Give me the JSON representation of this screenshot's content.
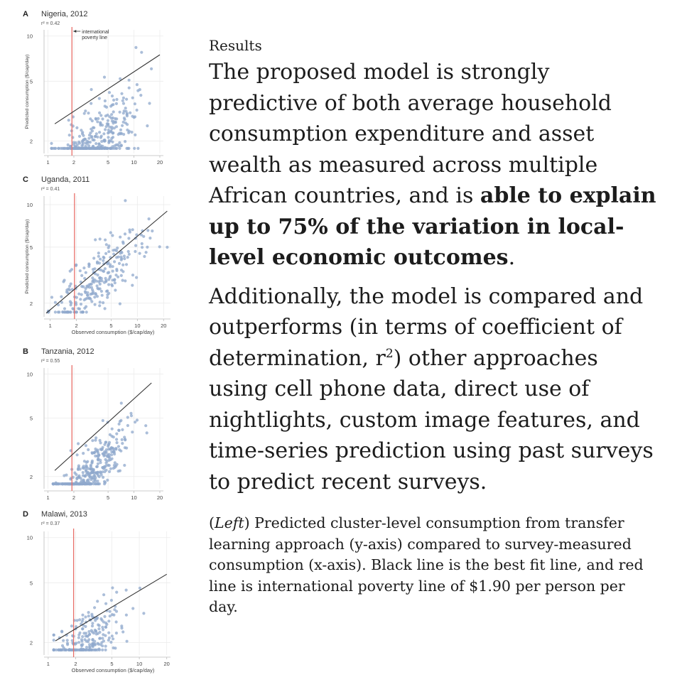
{
  "text": {
    "section_label": "Results",
    "para1_pre": "The proposed model is strongly predictive of both average household consumption expenditure and asset wealth as measured across multiple African countries, and is ",
    "para1_bold": "able to explain up to 75% of the variation in local-level economic outcomes",
    "para1_post": ".",
    "para2_pre": "Additionally, the model is compared and outperforms (in terms of coefficient of determination, r",
    "para2_sup": "2",
    "para2_post": ") other approaches using cell phone data, direct use of nightlights, custom image features, and time-series prediction using past surveys to predict recent surveys.",
    "caption_pre": "(",
    "caption_italic": "Left",
    "caption_post": ") Predicted cluster-level consumption from transfer learning approach (y-axis) compared to survey-measured consumption (x-axis). Black line is the best fit line, and red line is international poverty line of $1.90 per person per day."
  },
  "colors": {
    "points": "#8fa8cc",
    "fit_line": "#333333",
    "poverty_line": "#e8706a",
    "grid": "#ececec",
    "axis": "#bdbdbd"
  },
  "chart_data": [
    {
      "type": "scatter",
      "panel": "A",
      "title": "Nigeria, 2012",
      "r2": "r² = 0.42",
      "xlabel": "",
      "ylabel": "Predicted consumption ($/cap/day)",
      "x_scale": "log",
      "y_scale": "log",
      "xlim": [
        0.9,
        22
      ],
      "ylim": [
        1.65,
        11
      ],
      "xticks": [
        1,
        2,
        5,
        10,
        20
      ],
      "yticks": [
        2,
        5,
        10
      ],
      "poverty_line_x": 1.9,
      "annotation": [
        "international",
        "poverty line"
      ],
      "fit": {
        "x": [
          1.2,
          20
        ],
        "y": [
          2.6,
          7.5
        ]
      },
      "seed": 11,
      "n": 340,
      "cloud": {
        "x_mu": 1.32,
        "x_sd": 0.5,
        "x_min": 1.1,
        "x_max": 16,
        "slope": 0.42,
        "icept": 0.1,
        "noise": 0.3
      }
    },
    {
      "type": "scatter",
      "panel": "C",
      "title": "Uganda, 2011",
      "r2": "r² = 0.41",
      "xlabel": "Observed consumption ($/cap/day)",
      "ylabel": "Predicted consumption ($/cap/day)",
      "x_scale": "log",
      "y_scale": "log",
      "xlim": [
        0.85,
        24
      ],
      "ylim": [
        1.6,
        11.5
      ],
      "xticks": [
        1,
        2,
        5,
        10,
        20
      ],
      "yticks": [
        2,
        5,
        10
      ],
      "poverty_line_x": 1.9,
      "fit": {
        "x": [
          0.9,
          22
        ],
        "y": [
          1.7,
          9.0
        ]
      },
      "seed": 23,
      "n": 260,
      "cloud": {
        "x_mu": 1.2,
        "x_sd": 0.62,
        "x_min": 0.95,
        "x_max": 22,
        "slope": 0.55,
        "icept": 0.36,
        "noise": 0.28
      }
    },
    {
      "type": "scatter",
      "panel": "B",
      "title": "Tanzania, 2012",
      "r2": "r² = 0.55",
      "xlabel": "",
      "ylabel": "",
      "x_scale": "log",
      "y_scale": "log",
      "xlim": [
        0.9,
        22
      ],
      "ylim": [
        1.65,
        11
      ],
      "xticks": [
        1,
        2,
        5,
        10,
        20
      ],
      "yticks": [
        2,
        5,
        10
      ],
      "poverty_line_x": 1.9,
      "fit": {
        "x": [
          1.2,
          16
        ],
        "y": [
          2.2,
          8.7
        ]
      },
      "seed": 37,
      "n": 360,
      "cloud": {
        "x_mu": 1.2,
        "x_sd": 0.5,
        "x_min": 1.15,
        "x_max": 16,
        "slope": 0.6,
        "icept": 0.05,
        "noise": 0.22
      }
    },
    {
      "type": "scatter",
      "panel": "D",
      "title": "Malawi, 2013",
      "r2": "r² = 0.37",
      "xlabel": "Observed consumption ($/cap/day)",
      "ylabel": "",
      "x_scale": "log",
      "y_scale": "log",
      "xlim": [
        0.9,
        22
      ],
      "ylim": [
        1.65,
        11
      ],
      "xticks": [
        1,
        2,
        5,
        10,
        20
      ],
      "yticks": [
        2,
        5,
        10
      ],
      "poverty_line_x": 1.9,
      "fit": {
        "x": [
          1.2,
          20
        ],
        "y": [
          2.05,
          5.7
        ]
      },
      "seed": 53,
      "n": 230,
      "cloud": {
        "x_mu": 0.95,
        "x_sd": 0.45,
        "x_min": 1.15,
        "x_max": 20,
        "slope": 0.35,
        "icept": 0.38,
        "noise": 0.24
      }
    }
  ]
}
